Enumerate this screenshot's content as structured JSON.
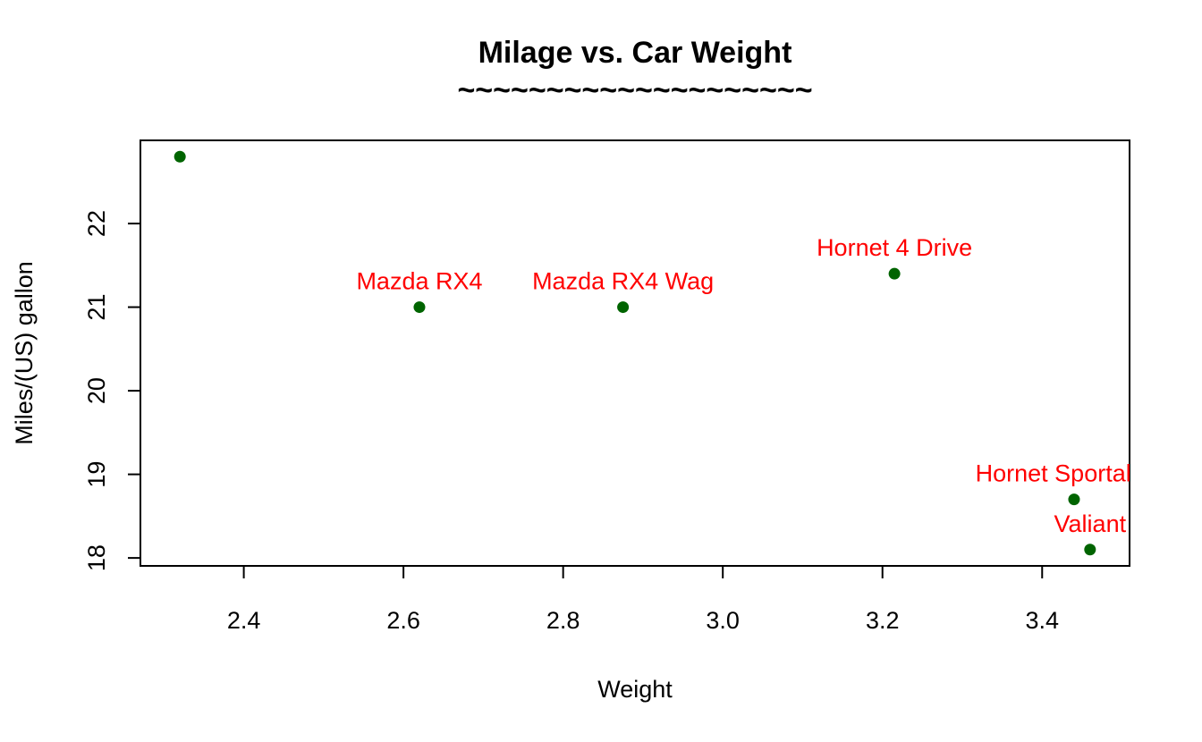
{
  "chart_data": {
    "type": "scatter",
    "title": "Milage vs. Car Weight",
    "subtitle": "~~~~~~~~~~~~~~~~~~~~",
    "xlabel": "Weight",
    "ylabel": "Miles/(US) gallon",
    "xlim": [
      2.2705,
      3.5095
    ],
    "ylim": [
      17.905,
      22.995
    ],
    "x_ticks": [
      "2.4",
      "2.6",
      "2.8",
      "3.0",
      "3.2",
      "3.4"
    ],
    "x_tick_values": [
      2.4,
      2.6,
      2.8,
      3.0,
      3.2,
      3.4
    ],
    "y_ticks": [
      "18",
      "19",
      "20",
      "21",
      "22"
    ],
    "y_tick_values": [
      18,
      19,
      20,
      21,
      22
    ],
    "grid": false,
    "point_color": "#006400",
    "label_color": "#FF0000",
    "points": [
      {
        "x": 2.32,
        "y": 22.8,
        "label": ""
      },
      {
        "x": 2.62,
        "y": 21.0,
        "label": "Mazda RX4"
      },
      {
        "x": 2.875,
        "y": 21.0,
        "label": "Mazda RX4 Wag"
      },
      {
        "x": 3.215,
        "y": 21.4,
        "label": "Hornet 4 Drive"
      },
      {
        "x": 3.44,
        "y": 18.7,
        "label": "Hornet Sportabout"
      },
      {
        "x": 3.46,
        "y": 18.1,
        "label": "Valiant"
      }
    ]
  }
}
